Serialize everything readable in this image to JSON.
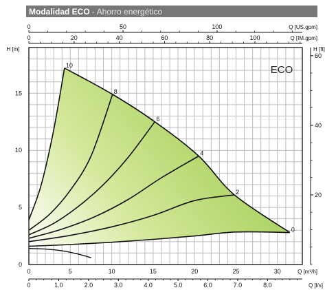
{
  "title": {
    "main": "Modalidad ECO",
    "sub": " - Ahorro energético"
  },
  "chart_data": {
    "type": "line",
    "annotation": "ECO",
    "axes": {
      "x_primary": {
        "label": "Q [m³/h]",
        "range": [
          0,
          33
        ],
        "major_ticks": [
          0,
          5,
          10,
          15,
          20,
          25,
          30
        ]
      },
      "x_lps": {
        "label": "Q [l/s]",
        "ticks": [
          "0",
          "1.0",
          "2.0",
          "3.0",
          "4.0",
          "5.0",
          "6.0",
          "7.0",
          "8.0"
        ],
        "values": [
          0,
          1,
          2,
          3,
          4,
          5,
          6,
          7,
          8
        ],
        "m3h_per_unit": 3.6
      },
      "x_us_gpm": {
        "label": "Q [US.gpm]",
        "ticks": [
          "0",
          "50",
          "100"
        ],
        "values": [
          0,
          50,
          100
        ],
        "m3h_per_unit": 0.22712
      },
      "x_im_gpm": {
        "label": "Q [IM.gpm]",
        "ticks": [
          "0",
          "20",
          "40",
          "60",
          "80",
          "100"
        ],
        "values": [
          0,
          20,
          40,
          60,
          80,
          100
        ],
        "m3h_per_unit": 0.27277
      },
      "y_primary": {
        "label": "H [m]",
        "range": [
          0,
          19
        ],
        "major_ticks": [
          0,
          5,
          10,
          15
        ]
      },
      "y_ft": {
        "label": "H [ft]",
        "ticks": [
          "20",
          "40",
          "60"
        ],
        "values": [
          20,
          40,
          60
        ],
        "m_per_unit": 0.3048
      }
    },
    "grid": true,
    "fill_color": "#a3cd4a",
    "series": [
      {
        "name": "0",
        "x": [
          0,
          5,
          10,
          15,
          20,
          25,
          31.5
        ],
        "y": [
          1.6,
          1.75,
          1.95,
          2.2,
          2.5,
          2.85,
          2.8
        ]
      },
      {
        "name": "2",
        "x": [
          0,
          5,
          10,
          15,
          20,
          24.8
        ],
        "y": [
          2.0,
          2.55,
          3.3,
          4.3,
          5.6,
          6.1
        ]
      },
      {
        "name": "4",
        "x": [
          0,
          4,
          8,
          12,
          16,
          20.5
        ],
        "y": [
          2.3,
          3.1,
          4.2,
          5.7,
          7.6,
          9.5
        ]
      },
      {
        "name": "6",
        "x": [
          0,
          3,
          6,
          9,
          12,
          15.2
        ],
        "y": [
          2.6,
          3.6,
          5.1,
          7.0,
          9.4,
          12.5
        ]
      },
      {
        "name": "8",
        "x": [
          0,
          2.5,
          5,
          7.5,
          10.1
        ],
        "y": [
          3.0,
          4.4,
          6.5,
          9.5,
          14.9
        ]
      },
      {
        "name": "10",
        "x": [
          0,
          1.5,
          3,
          4.3
        ],
        "y": [
          3.9,
          7.0,
          11.8,
          17.2
        ]
      }
    ],
    "envelope": {
      "x": [
        4.3,
        10.1,
        15.2,
        20.5,
        24.8,
        31.5
      ],
      "y": [
        17.2,
        14.9,
        12.5,
        9.5,
        6.1,
        2.8
      ]
    },
    "lower_curve": {
      "x": [
        0,
        5,
        10,
        15,
        20,
        25,
        31.5
      ],
      "y": [
        1.6,
        1.75,
        1.95,
        2.2,
        2.5,
        2.85,
        2.8
      ]
    },
    "npsh_curve": {
      "x": [
        0,
        2,
        4,
        6,
        7.5
      ],
      "y": [
        1.4,
        1.35,
        1.2,
        0.9,
        0.6
      ]
    }
  }
}
